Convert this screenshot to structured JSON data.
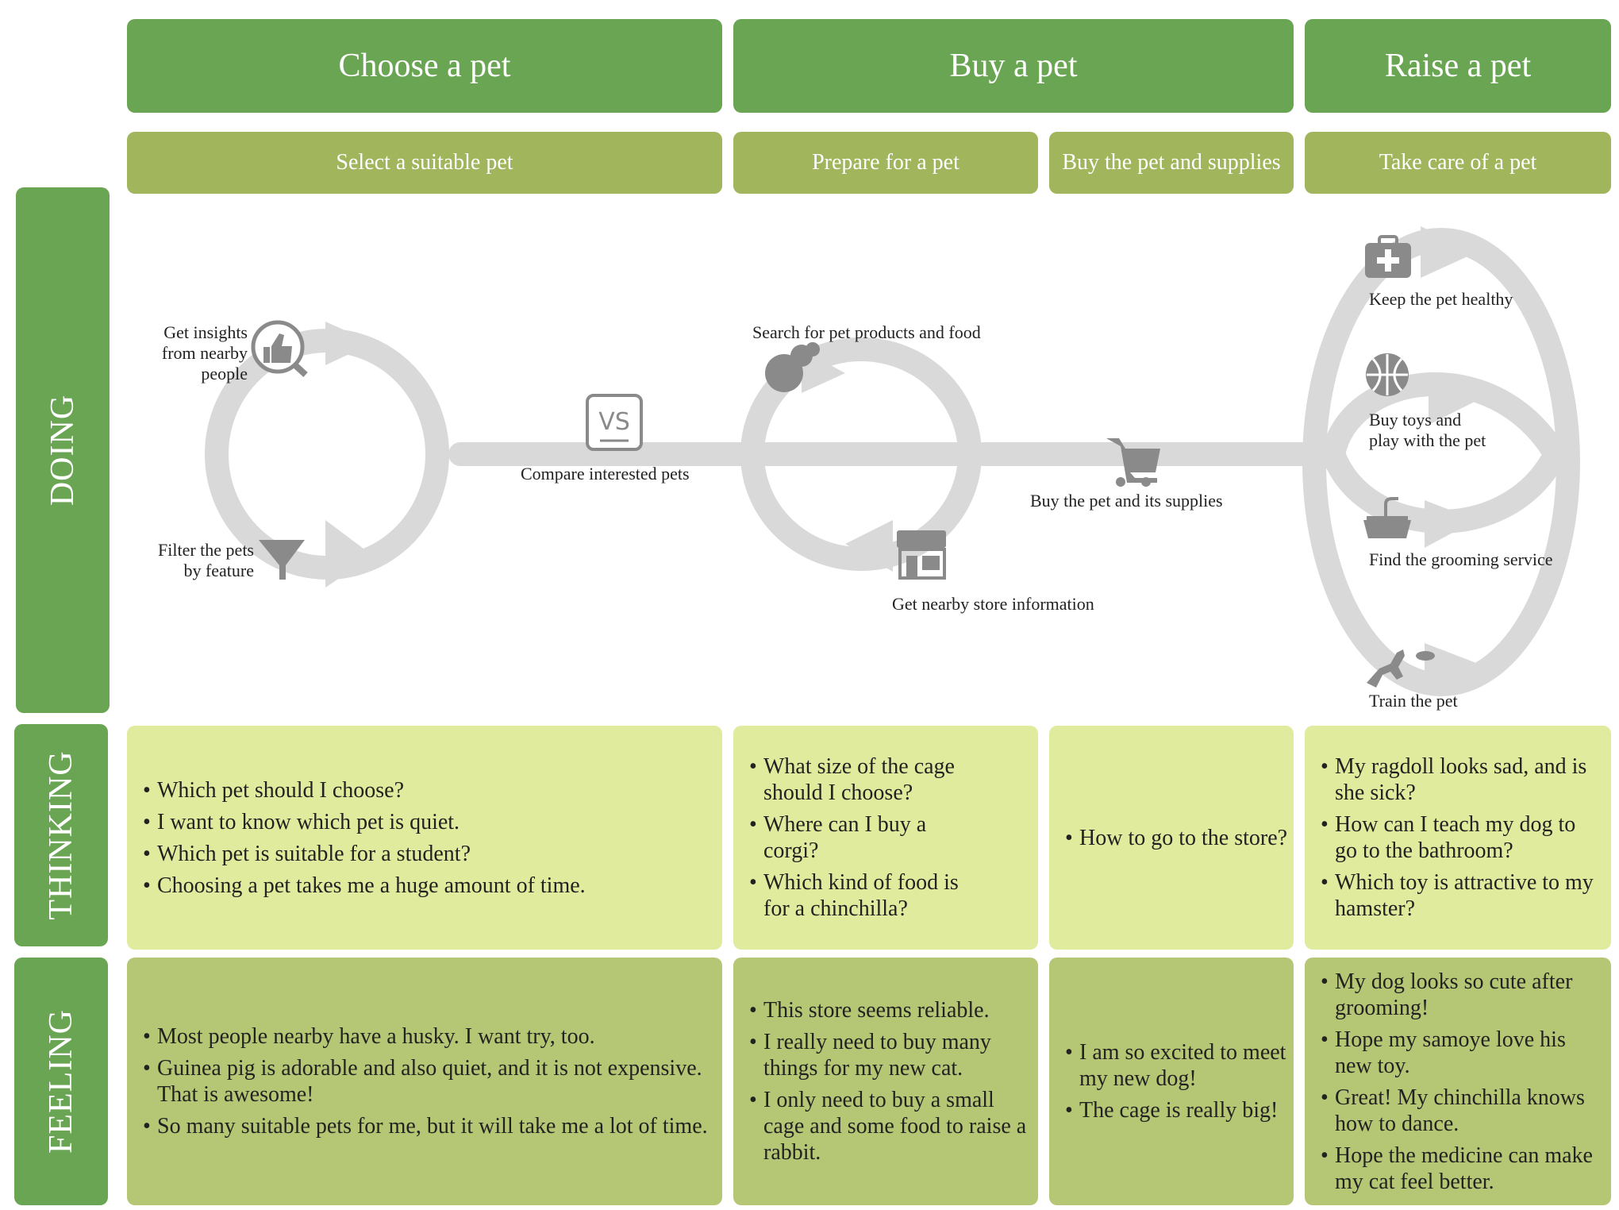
{
  "stages": [
    "Choose a pet",
    "Buy a pet",
    "Raise a pet"
  ],
  "substages": [
    "Select a suitable pet",
    "Prepare for a pet",
    "Buy the pet and supplies",
    "Take care of a pet"
  ],
  "rows": [
    "DOING",
    "THINKING",
    "FEELING"
  ],
  "doing": {
    "insights": [
      "Get insights",
      "from nearby",
      "people"
    ],
    "filter": [
      "Filter the pets",
      "by feature"
    ],
    "compare": "Compare interested pets",
    "vs": "VS",
    "search": "Search for pet products and food",
    "store": "Get nearby store information",
    "buy": "Buy the pet and its supplies",
    "healthy": "Keep the pet healthy",
    "toys": [
      "Buy toys and",
      "play with the pet"
    ],
    "grooming": "Find the grooming service",
    "train": "Train the pet"
  },
  "thinking": [
    [
      "Which pet should I choose?",
      "I want to know which pet is quiet.",
      "Which pet is suitable for a student?",
      "Choosing a pet takes me a huge amount of time."
    ],
    [
      "What size of the cage should I choose?",
      "Where can I buy a corgi?",
      "Which kind of food is for a chinchilla?"
    ],
    [
      "How to go to the store?"
    ],
    [
      "My ragdoll looks sad, and is she sick?",
      "How can I teach my dog to go to the bathroom?",
      "Which toy is attractive to my hamster?"
    ]
  ],
  "feeling": [
    [
      "Most people nearby have a husky. I want try, too.",
      "Guinea pig is adorable and also quiet, and it is not expensive. That is awesome!",
      "So many suitable pets for me, but it will take me a lot of time."
    ],
    [
      "This store seems reliable.",
      "I really need to buy many things for my new cat.",
      "I only need to buy a small cage and some food to raise a rabbit."
    ],
    [
      "I am so excited to meet my new dog!",
      "The cage is really big!"
    ],
    [
      "My dog looks so cute after grooming!",
      "Hope my samoye love his new toy.",
      "Great! My chinchilla knows how to dance.",
      "Hope the medicine can make my cat feel better."
    ]
  ],
  "colors": {
    "stage": "#6aa553",
    "substage": "#a0b55c",
    "thinking": "#e1eb9d",
    "feeling": "#b5c674",
    "flow": "#d9d9d9",
    "icon": "#8a8a8a"
  }
}
